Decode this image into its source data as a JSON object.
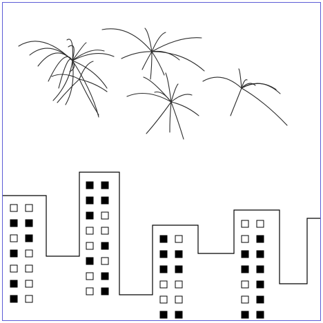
{
  "colors": {
    "background": "#ffffff",
    "frame": "#5b5bd6",
    "ink": "#000000",
    "firework_stroke": "#2a2a2a"
  },
  "fireworks": [
    {
      "name": "firework-burst-1"
    },
    {
      "name": "firework-burst-2"
    },
    {
      "name": "firework-burst-3"
    },
    {
      "name": "firework-burst-4"
    },
    {
      "name": "firework-burst-5"
    }
  ],
  "buildings": [
    {
      "name": "building-1",
      "windows": [
        [
          0,
          0
        ],
        [
          1,
          1
        ],
        [
          0,
          1
        ],
        [
          1,
          0
        ],
        [
          0,
          0
        ],
        [
          1,
          0
        ],
        [
          1,
          0
        ]
      ]
    },
    {
      "name": "building-2",
      "windows": [
        [
          1,
          1
        ],
        [
          1,
          1
        ],
        [
          1,
          0
        ],
        [
          0,
          0
        ],
        [
          0,
          1
        ],
        [
          1,
          0
        ],
        [
          0,
          1
        ],
        [
          0,
          1
        ]
      ]
    },
    {
      "name": "building-3",
      "windows": [
        [
          1,
          0
        ],
        [
          1,
          1
        ],
        [
          1,
          1
        ],
        [
          0,
          0
        ],
        [
          0,
          0
        ],
        [
          1,
          1
        ]
      ]
    },
    {
      "name": "building-4",
      "windows": [
        [
          0,
          0
        ],
        [
          0,
          1
        ],
        [
          1,
          1
        ],
        [
          1,
          1
        ],
        [
          0,
          1
        ],
        [
          0,
          1
        ],
        [
          1,
          1
        ]
      ]
    }
  ]
}
